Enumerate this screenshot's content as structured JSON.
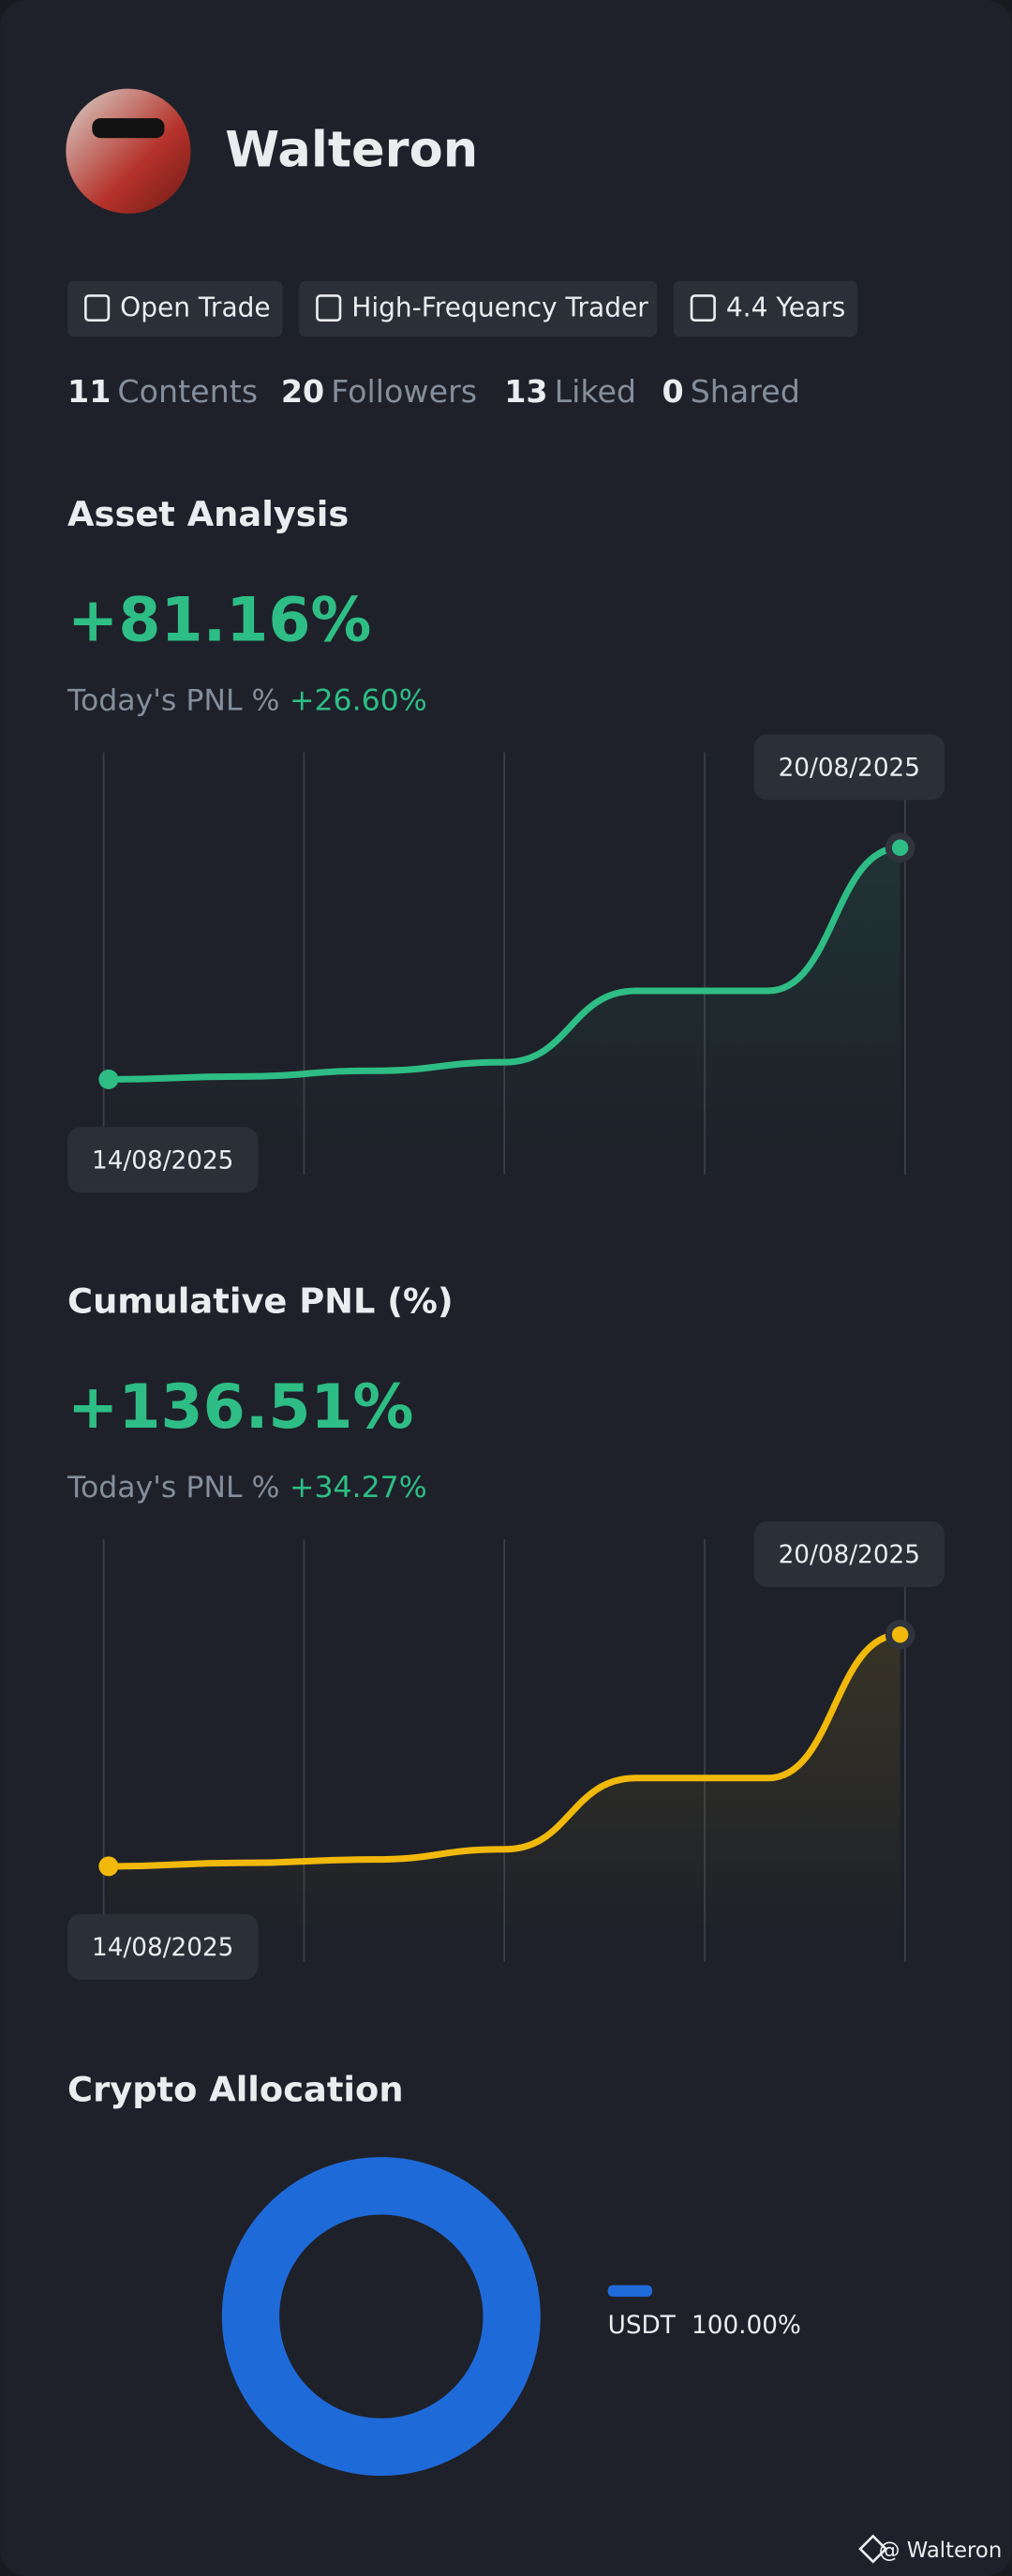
{
  "profile": {
    "name": "Walteron",
    "badges": [
      "Open Trade",
      "High-Frequency Trader",
      "4.4 Years"
    ],
    "stats": [
      {
        "value": 11,
        "label": "Contents"
      },
      {
        "value": 20,
        "label": "Followers"
      },
      {
        "value": 13,
        "label": "Liked"
      },
      {
        "value": 0,
        "label": "Shared"
      }
    ]
  },
  "chart_data": [
    {
      "type": "line",
      "title": "Asset Analysis",
      "headline": "+81.16%",
      "today_label": "Today's PNL %",
      "today_value": "+26.60%",
      "categories": [
        "14/08/2025",
        null,
        null,
        null,
        null,
        null,
        "20/08/2025"
      ],
      "values": [
        0,
        1,
        3,
        6,
        31,
        31,
        81.16
      ],
      "color": "#2ebd85"
    },
    {
      "type": "line",
      "title": "Cumulative PNL (%)",
      "headline": "+136.51%",
      "today_label": "Today's PNL %",
      "today_value": "+34.27%",
      "categories": [
        "14/08/2025",
        null,
        null,
        null,
        null,
        null,
        "20/08/2025"
      ],
      "values": [
        0,
        2,
        4,
        10,
        52,
        52,
        136.51
      ],
      "color": "#f0b90b"
    },
    {
      "type": "pie",
      "title": "Crypto Allocation",
      "categories": [
        "USDT"
      ],
      "values": [
        100
      ],
      "value_labels": [
        "100.00%"
      ],
      "colors": [
        "#1f6ad9"
      ]
    }
  ],
  "footer": {
    "watermark": "@ Walteron"
  }
}
